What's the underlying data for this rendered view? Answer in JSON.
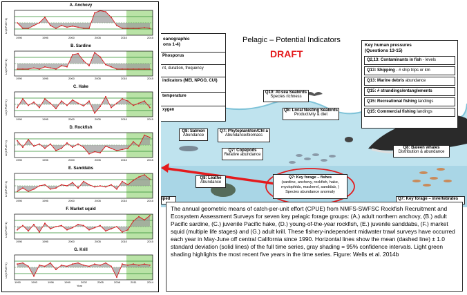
{
  "left_panel": {
    "plots": [
      {
        "title": "A. Anchovy"
      },
      {
        "title": "B. Sardine"
      },
      {
        "title": "C. Hake"
      },
      {
        "title": "D. Rockfish"
      },
      {
        "title": "E. Sanddabs"
      },
      {
        "title": "F. Market squid"
      },
      {
        "title": "G. Krill"
      }
    ],
    "ylabel": "Ln(CPUE+1)",
    "xlabel": "Year",
    "year_ticks_top": [
      "1990",
      "1995",
      "2000",
      "2005",
      "2010",
      "2015"
    ],
    "year_ticks_bottom": [
      "1990",
      "1993",
      "1996",
      "1999",
      "2002",
      "2005",
      "2008",
      "2011",
      "2014"
    ]
  },
  "diagram": {
    "title": "Pelagic – Potential Indicators",
    "draft": "DRAFT",
    "left_box": {
      "title": "eanographic",
      "subtitle": "ons 1-4)",
      "items": [
        "Phosporus",
        "nt, duration, frequency",
        "indicators (MEI, NPGO, CUI)",
        "temperature",
        "xygen"
      ]
    },
    "pressures": {
      "title": "Key human pressures",
      "subtitle": "(Questions 13-15)",
      "items": [
        {
          "q": "Q2,13:",
          "label": "Contaminants in fish",
          "rest": " - levels"
        },
        {
          "q": "Q13:",
          "label": "Shipping",
          "rest": " - # ship trips or km"
        },
        {
          "q": "Q13:",
          "label": "Marine debris",
          "rest": " abundance"
        },
        {
          "q": "Q15:",
          "label": "# strandings/entanglements",
          "rest": ""
        },
        {
          "q": "Q15:",
          "label": "Recreational fishing",
          "rest": " landings"
        },
        {
          "q": "Q15:",
          "label": "Commercial fishing",
          "rest": " landings"
        }
      ]
    },
    "labels": {
      "seabirds_t": "Q10: At-sea Seabirds",
      "seabirds_s": "Species richness",
      "nesting_t": "Q8: Local Nesting Seabirds",
      "nesting_s": "Productivity & diet",
      "salmon_t": "Q8: Salmon",
      "salmon_s": "Abundance",
      "phyto_t": "Q7: Phytoplankton/Chl a",
      "phyto_s": "Abundance/biomass",
      "cope_t": "Q7: Copepods",
      "cope_s": "Relative abundance",
      "whale_t": "Q8: Baleen whales",
      "whale_s": "Distribution & abundance",
      "leather_t": "Q8: Leathe",
      "leather_s": "Abundance",
      "forage_t": "Q7: Key forage – fishes",
      "forage_s1": "(sardine, anchovy, rockfish, hake,",
      "forage_s2": "myctophids, mackerel, sanddab, )",
      "forage_s3": "Species abundance anomaly",
      "invert_t": "Q7: Key forage – invertebrates",
      "biped": "iped"
    }
  },
  "caption": "The annual geometric means of catch-per-unit effort (CPUE) from NMFS-SWFSC Rockfish Recruitment and Ecosystem Assessment Surveys for seven key pelagic forage groups: (A.) adult northern anchovy, (B.) adult Pacific sardine, (C.) juvenile Pacific hake, (D.) young-of-the-year rockfish, (E.) juvenile sanddabs, (F.) market squid (multiple life stages) and (G.) adult krill. These fishery-independent midwater trawl surveys have occurred each year in May-June off central California since 1990. Horizontal lines show the mean (dashed line) ± 1.0 standard deviation (solid lines) of the full time series, gray shading = 95% confidence intervals. Light green shading highlights the most recent five years in the time series. Figure: Wells et al. 2014b"
}
